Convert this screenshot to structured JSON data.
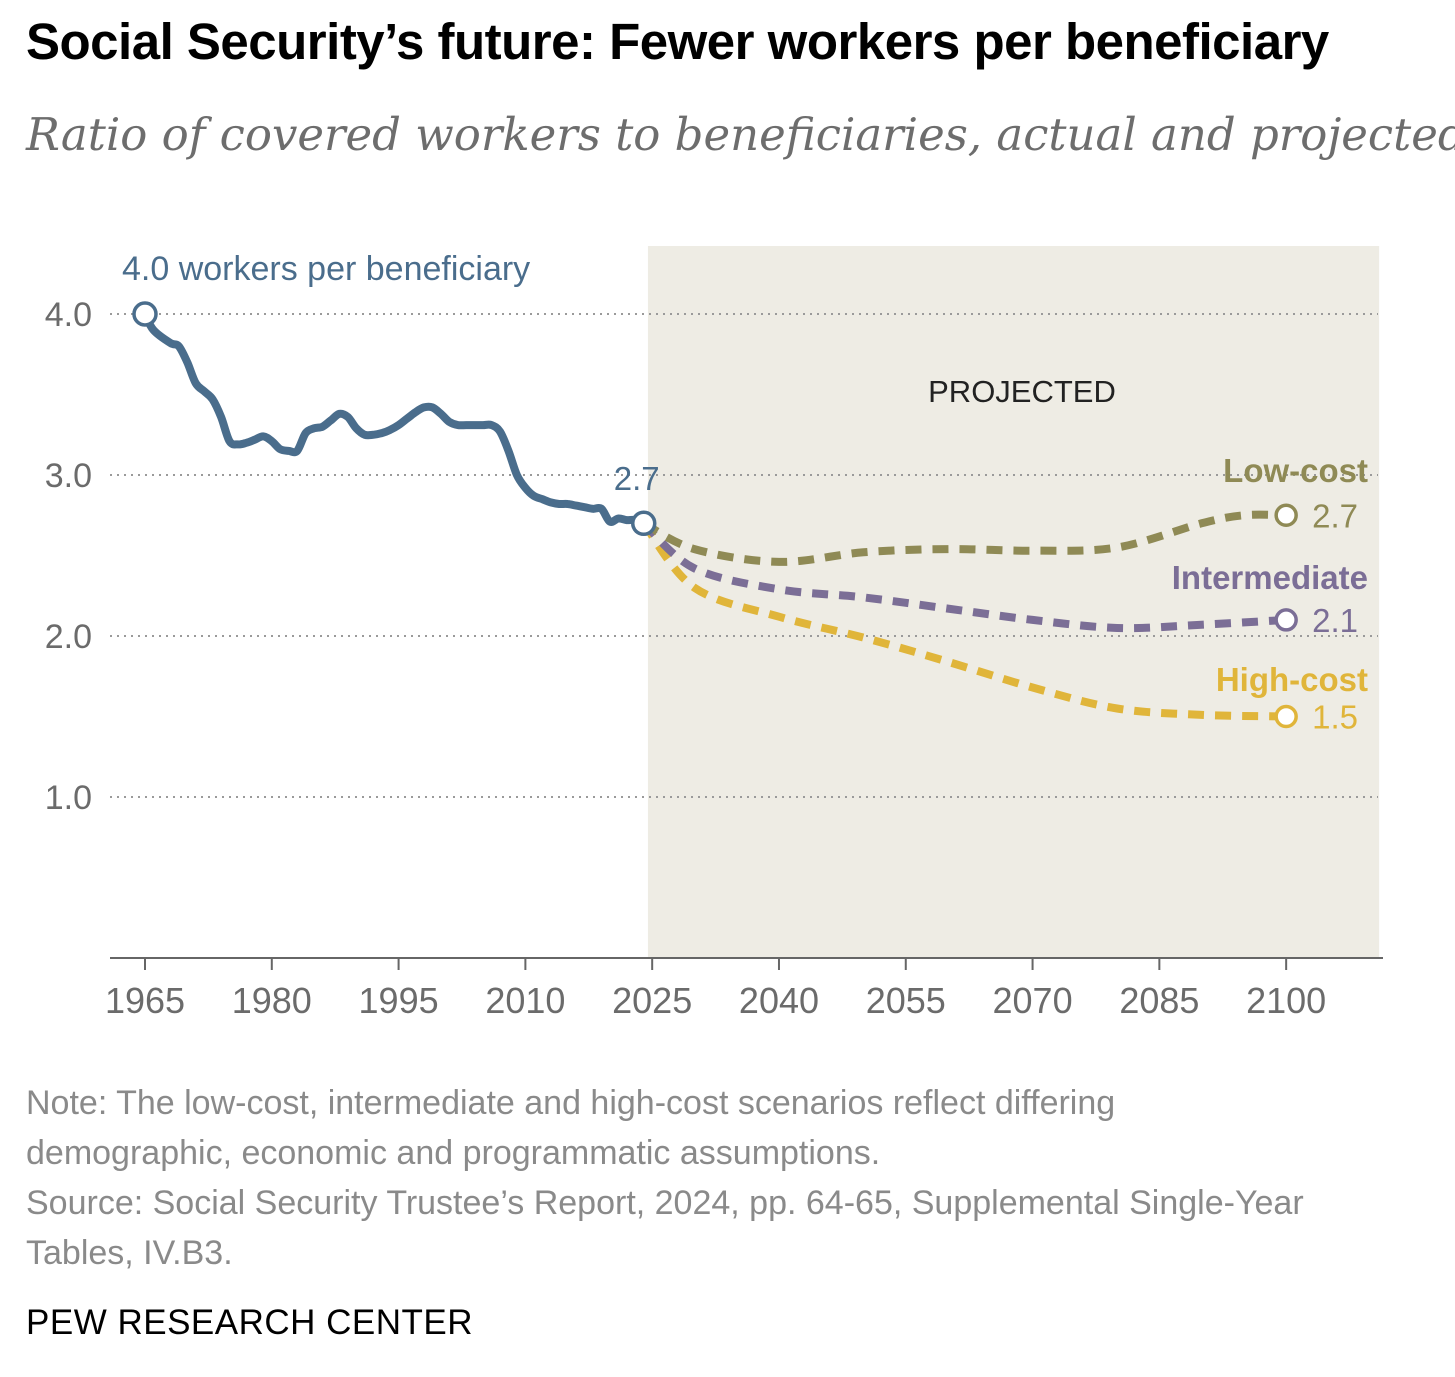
{
  "title": "Social Security’s future: Fewer workers per beneficiary",
  "subtitle": "Ratio of covered workers to beneficiaries, actual and projected",
  "note": "Note: The low-cost, intermediate and high-cost scenarios reflect differing demographic, economic and programmatic assumptions.",
  "source": "Source: Social Security Trustee’s Report, 2024, pp. 64-65, Supplemental Single-Year Tables, IV.B3.",
  "brand": "PEW RESEARCH CENTER",
  "colors": {
    "historical": "#4a6d8c",
    "low_cost": "#8f8a55",
    "intermediate": "#7b6e96",
    "high_cost": "#e0b53a",
    "projected_bg": "#eeece4",
    "grid": "#9a9a9a",
    "axis_text": "#6b6b6b"
  },
  "chart_data": {
    "type": "line",
    "x_ticks": [
      1965,
      1980,
      1995,
      2010,
      2025,
      2040,
      2055,
      2070,
      2085,
      2100
    ],
    "y_ticks": [
      1.0,
      2.0,
      3.0,
      4.0
    ],
    "y_tick_labels": [
      "1.0",
      "2.0",
      "3.0",
      "4.0"
    ],
    "xlim": [
      1961,
      2112
    ],
    "ylim": [
      0,
      4.4
    ],
    "grid": "horizontal dotted",
    "projected_region": {
      "label": "PROJECTED",
      "x_start": 2024.5,
      "x_end": 2111
    },
    "annotations": {
      "start": {
        "x": 1965,
        "y": 4.0,
        "label": "4.0 workers per beneficiary"
      },
      "current": {
        "x": 2024,
        "y": 2.7,
        "label": "2.7"
      }
    },
    "series": [
      {
        "key": "historical",
        "style": "solid",
        "x": [
          1965,
          1966,
          1968,
          1969,
          1970,
          1971,
          1972,
          1973,
          1974,
          1975,
          1976,
          1977,
          1978,
          1979,
          1980,
          1981,
          1982,
          1983,
          1984,
          1985,
          1986,
          1987,
          1988,
          1989,
          1990,
          1991,
          1992,
          1993,
          1994,
          1995,
          1996,
          1997,
          1998,
          1999,
          2000,
          2001,
          2002,
          2003,
          2004,
          2005,
          2006,
          2007,
          2008,
          2009,
          2010,
          2011,
          2012,
          2013,
          2014,
          2015,
          2016,
          2017,
          2018,
          2019,
          2020,
          2021,
          2022,
          2023,
          2024
        ],
        "values": [
          4.0,
          3.9,
          3.82,
          3.8,
          3.7,
          3.57,
          3.52,
          3.47,
          3.36,
          3.21,
          3.19,
          3.2,
          3.22,
          3.24,
          3.21,
          3.16,
          3.15,
          3.15,
          3.26,
          3.29,
          3.3,
          3.34,
          3.38,
          3.36,
          3.29,
          3.25,
          3.25,
          3.26,
          3.28,
          3.31,
          3.35,
          3.39,
          3.42,
          3.42,
          3.38,
          3.33,
          3.31,
          3.31,
          3.31,
          3.31,
          3.31,
          3.27,
          3.15,
          3.0,
          2.92,
          2.87,
          2.85,
          2.83,
          2.82,
          2.82,
          2.81,
          2.8,
          2.79,
          2.79,
          2.71,
          2.73,
          2.72,
          2.72,
          2.7
        ]
      },
      {
        "key": "low_cost",
        "name": "Low-cost",
        "style": "dashed",
        "end_label": "2.7",
        "x": [
          2024,
          2030,
          2040,
          2050,
          2060,
          2070,
          2080,
          2090,
          2095,
          2100
        ],
        "values": [
          2.7,
          2.54,
          2.46,
          2.52,
          2.54,
          2.53,
          2.55,
          2.7,
          2.75,
          2.75
        ]
      },
      {
        "key": "intermediate",
        "name": "Intermediate",
        "style": "dashed",
        "end_label": "2.1",
        "x": [
          2024,
          2030,
          2040,
          2050,
          2060,
          2070,
          2080,
          2090,
          2100
        ],
        "values": [
          2.7,
          2.42,
          2.29,
          2.24,
          2.17,
          2.1,
          2.05,
          2.07,
          2.1
        ]
      },
      {
        "key": "high_cost",
        "name": "High-cost",
        "style": "dashed",
        "end_label": "1.5",
        "x": [
          2024,
          2030,
          2040,
          2050,
          2060,
          2070,
          2080,
          2090,
          2100
        ],
        "values": [
          2.7,
          2.3,
          2.12,
          1.99,
          1.84,
          1.68,
          1.55,
          1.51,
          1.5
        ]
      }
    ]
  }
}
